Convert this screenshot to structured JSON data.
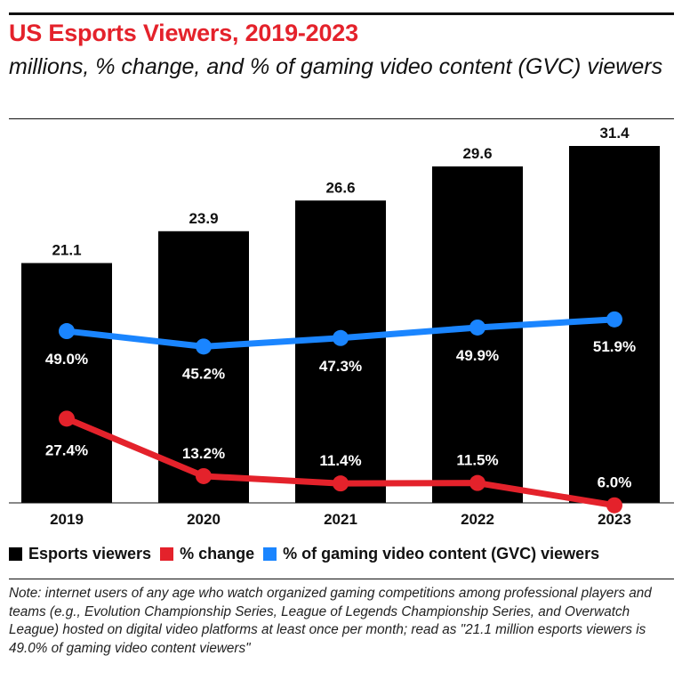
{
  "header": {
    "title": "US Esports Viewers, 2019-2023",
    "subtitle": "millions, % change, and % of gaming video content (GVC) viewers"
  },
  "chart_data": {
    "type": "bar",
    "categories": [
      "2019",
      "2020",
      "2021",
      "2022",
      "2023"
    ],
    "series": [
      {
        "name": "Esports viewers",
        "kind": "bar",
        "values": [
          21.1,
          23.9,
          26.6,
          29.6,
          31.4
        ],
        "labels": [
          "21.1",
          "23.9",
          "26.6",
          "29.6",
          "31.4"
        ],
        "color": "#000000"
      },
      {
        "name": "% change",
        "kind": "line",
        "values": [
          27.4,
          13.2,
          11.4,
          11.5,
          6.0
        ],
        "labels": [
          "27.4%",
          "13.2%",
          "11.4%",
          "11.5%",
          "6.0%"
        ],
        "color": "#e4222b"
      },
      {
        "name": "% of gaming video content (GVC) viewers",
        "kind": "line",
        "values": [
          49.0,
          45.2,
          47.3,
          49.9,
          51.9
        ],
        "labels": [
          "49.0%",
          "45.2%",
          "47.3%",
          "49.9%",
          "51.9%"
        ],
        "color": "#1a85ff"
      }
    ],
    "ylim": [
      0,
      31.4
    ],
    "xlabel": "",
    "ylabel": "",
    "grid": false,
    "legend": "bottom"
  },
  "legend": {
    "items": [
      {
        "label": "Esports viewers",
        "color": "#000000"
      },
      {
        "label": "% change",
        "color": "#e4222b"
      },
      {
        "label": "% of gaming video content (GVC) viewers",
        "color": "#1a85ff"
      }
    ]
  },
  "note": "Note: internet users of any age who watch organized gaming competitions among professional players and teams (e.g., Evolution Championship Series, League of Legends Championship Series, and Overwatch League) hosted on digital video platforms at least once per month; read as \"21.1 million esports viewers is 49.0% of gaming video content viewers\""
}
